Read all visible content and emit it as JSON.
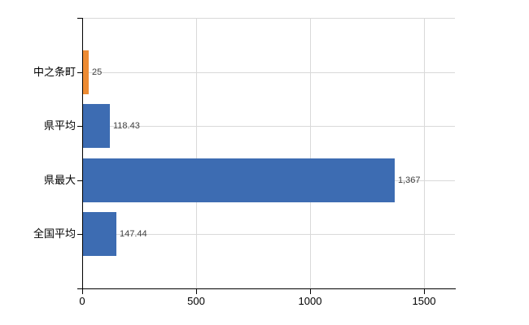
{
  "chart_data": {
    "type": "bar",
    "orientation": "horizontal",
    "title": "",
    "xlabel": "",
    "ylabel": "",
    "categories": [
      "中之条町",
      "県平均",
      "県最大",
      "全国平均"
    ],
    "values": [
      25,
      118.43,
      1367,
      147.44
    ],
    "value_labels": [
      "25",
      "118.43",
      "1,367",
      "147.44"
    ],
    "bar_colors": [
      "#ed8b33",
      "#3d6cb2",
      "#3d6cb2",
      "#3d6cb2"
    ],
    "highlight_color": "#ed8b33",
    "series_color": "#3d6cb2",
    "x_ticks": [
      0,
      500,
      1000,
      1500
    ],
    "x_tick_labels": [
      "0",
      "500",
      "1000",
      "1500"
    ],
    "xlim": [
      0,
      1636
    ],
    "grid": true,
    "legend": false
  },
  "colors": {
    "axis": "#000000",
    "grid": "#d9d9d9",
    "value_text": "#404040",
    "background": "#ffffff"
  }
}
